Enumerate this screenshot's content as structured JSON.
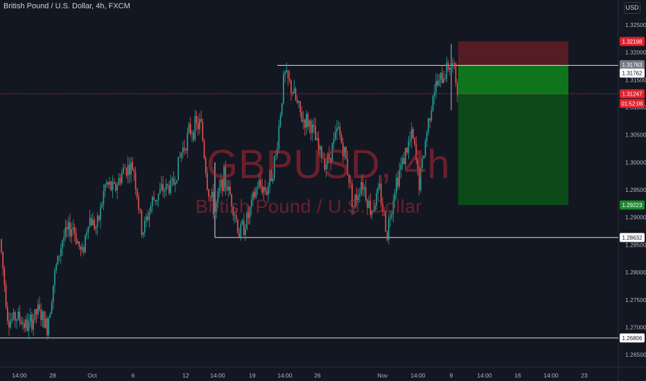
{
  "header": {
    "title": "British Pound / U.S. Dollar, 4h, FXCM",
    "currency": "USD"
  },
  "watermark": {
    "symbol": "GBPUSD, 4h",
    "name": "British Pound / U.S. Dollar"
  },
  "colors": {
    "background": "#131722",
    "up": "#26a69a",
    "down": "#ef5350",
    "stop_zone": "#5d1e24",
    "target_zone_top": "#0f7a1c",
    "target_zone_bottom": "#0b4d17",
    "label_red": "#e0232e",
    "label_green": "#1d8a2c",
    "label_grey": "#787b86"
  },
  "chart_data": {
    "type": "candlestick",
    "title": "British Pound / U.S. Dollar, 4h, FXCM",
    "ylim": [
      1.263,
      1.327
    ],
    "y_ticks": [
      "1.32500",
      "1.32000",
      "1.31500",
      "1.31000",
      "1.30500",
      "1.30000",
      "1.29500",
      "1.29000",
      "1.28500",
      "1.28000",
      "1.27500",
      "1.27000",
      "1.26500"
    ],
    "x_ticks": [
      "14:00",
      "28",
      "Oct",
      "6",
      "12",
      "14:00",
      "19",
      "14:00",
      "26",
      "Nov",
      "14:00",
      "9",
      "14:00",
      "16",
      "14:00",
      "23"
    ],
    "series_path": [
      [
        0,
        1.286
      ],
      [
        12,
        1.271
      ],
      [
        25,
        1.272
      ],
      [
        40,
        1.27
      ],
      [
        55,
        1.273
      ],
      [
        68,
        1.27
      ],
      [
        78,
        1.279
      ],
      [
        90,
        1.286
      ],
      [
        105,
        1.2885
      ],
      [
        118,
        1.283
      ],
      [
        128,
        1.29
      ],
      [
        140,
        1.288
      ],
      [
        152,
        1.296
      ],
      [
        165,
        1.295
      ],
      [
        180,
        1.299
      ],
      [
        193,
        1.299
      ],
      [
        205,
        1.287
      ],
      [
        220,
        1.293
      ],
      [
        235,
        1.295
      ],
      [
        250,
        1.296
      ],
      [
        262,
        1.302
      ],
      [
        275,
        1.306
      ],
      [
        290,
        1.307
      ],
      [
        300,
        1.295
      ],
      [
        310,
        1.291
      ],
      [
        322,
        1.2975
      ],
      [
        335,
        1.293
      ],
      [
        345,
        1.287
      ],
      [
        358,
        1.29
      ],
      [
        372,
        1.296
      ],
      [
        385,
        1.295
      ],
      [
        398,
        1.301
      ],
      [
        410,
        1.316
      ],
      [
        422,
        1.313
      ],
      [
        435,
        1.308
      ],
      [
        448,
        1.307
      ],
      [
        460,
        1.302
      ],
      [
        472,
        1.3
      ],
      [
        488,
        1.306
      ],
      [
        500,
        1.3
      ],
      [
        510,
        1.292
      ],
      [
        522,
        1.297
      ],
      [
        535,
        1.291
      ],
      [
        548,
        1.295
      ],
      [
        558,
        1.287
      ],
      [
        570,
        1.296
      ],
      [
        583,
        1.301
      ],
      [
        595,
        1.305
      ],
      [
        605,
        1.296
      ],
      [
        615,
        1.305
      ],
      [
        625,
        1.313
      ],
      [
        637,
        1.315
      ],
      [
        648,
        1.318
      ],
      [
        655,
        1.317
      ],
      [
        660,
        1.313
      ]
    ],
    "time_indicator": {
      "x_tick": "9"
    },
    "horizontal_levels": [
      {
        "price": 1.31763,
        "label": "1.31763"
      },
      {
        "price": 1.28632,
        "label": "1.28632"
      },
      {
        "price": 1.26806,
        "label": "1.26806"
      },
      {
        "price": 1.31247,
        "label": "1.31247",
        "note": "current"
      }
    ],
    "short_position": {
      "entry": 1.31762,
      "stop": 1.32198,
      "target": 1.29223
    },
    "price_labels": [
      {
        "value": "1.32198",
        "color": "red"
      },
      {
        "value": "1.31763",
        "color": "grey"
      },
      {
        "value": "1.31762",
        "color": "white"
      },
      {
        "value": "1.31247",
        "color": "red"
      },
      {
        "value": "01:52:06",
        "color": "red"
      },
      {
        "value": "1.29223",
        "color": "green"
      },
      {
        "value": "1.28632",
        "color": "white"
      },
      {
        "value": "1.26806",
        "color": "white"
      }
    ]
  }
}
